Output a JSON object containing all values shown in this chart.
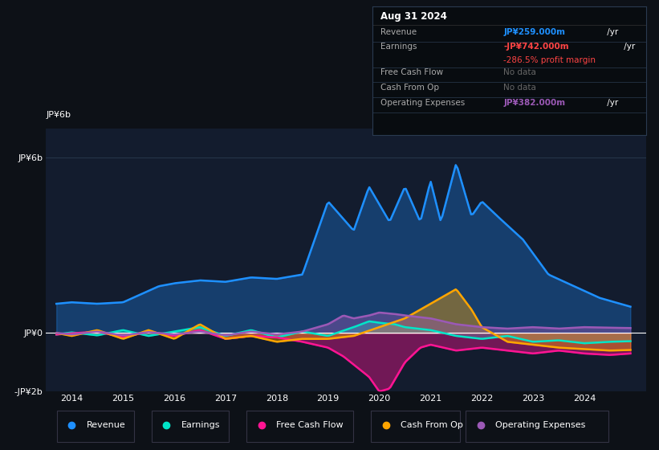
{
  "bg_color": "#0d1117",
  "plot_bg_color": "#131c2e",
  "ylim": [
    -2000,
    7000
  ],
  "xlim_start": 2013.5,
  "xlim_end": 2025.2,
  "xticks": [
    2014,
    2015,
    2016,
    2017,
    2018,
    2019,
    2020,
    2021,
    2022,
    2023,
    2024
  ],
  "yticks": [
    -2000,
    0,
    6000
  ],
  "ytick_labels": [
    "-JP¥2b",
    "JP¥0",
    "JP¥6b"
  ],
  "grid_color": "#2a3a50",
  "zero_line_color": "#ffffff",
  "colors": {
    "revenue": "#1e90ff",
    "earnings": "#00e5c8",
    "free_cash_flow": "#ff1493",
    "cash_from_op": "#ffa500",
    "operating_expenses": "#9b59b6"
  },
  "fill_alpha": 0.4,
  "line_width": 1.8,
  "tooltip_bg": "#080c10",
  "tooltip_border": "#2a3a50",
  "tooltip": {
    "date": "Aug 31 2024",
    "revenue_label": "Revenue",
    "revenue_val": "JP¥259.000m",
    "revenue_color": "#1e90ff",
    "earnings_label": "Earnings",
    "earnings_val": "-JP¥742.000m",
    "earnings_color": "#ff4444",
    "margin_val": "-286.5%",
    "margin_color": "#ff4444",
    "fcf_label": "Free Cash Flow",
    "fcf_val": "No data",
    "cfo_label": "Cash From Op",
    "cfo_val": "No data",
    "opex_label": "Operating Expenses",
    "opex_val": "JP¥382.000m",
    "opex_color": "#9b59b6"
  },
  "legend": [
    {
      "label": "Revenue",
      "color": "#1e90ff"
    },
    {
      "label": "Earnings",
      "color": "#00e5c8"
    },
    {
      "label": "Free Cash Flow",
      "color": "#ff1493"
    },
    {
      "label": "Cash From Op",
      "color": "#ffa500"
    },
    {
      "label": "Operating Expenses",
      "color": "#9b59b6"
    }
  ]
}
